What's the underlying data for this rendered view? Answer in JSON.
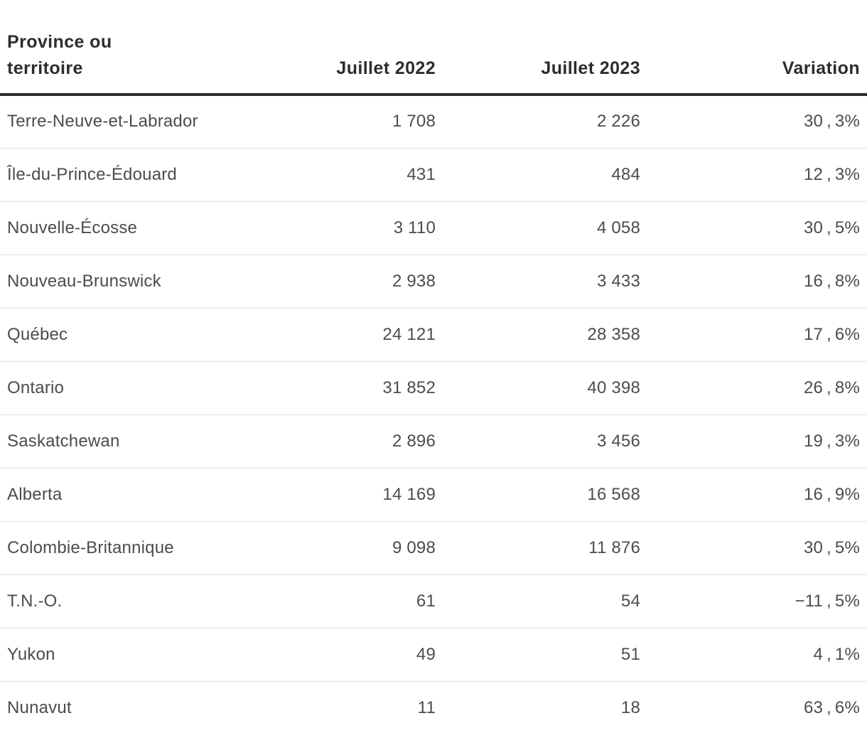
{
  "colors": {
    "background": "#ffffff",
    "header_text": "#2d2d2d",
    "body_text": "#4c4c4c",
    "header_rule": "#2b2b2b",
    "row_separator": "#e2e2e2"
  },
  "table": {
    "columns": [
      {
        "id": "province",
        "label": "Province ou territoire"
      },
      {
        "id": "juillet_2022",
        "label": "Juillet 2022"
      },
      {
        "id": "juillet_2023",
        "label": "Juillet 2023"
      },
      {
        "id": "variation",
        "label": "Variation"
      }
    ],
    "rows": [
      {
        "province": "Terre-Neuve-et-Labrador",
        "juillet_2022": "1 708",
        "juillet_2023": "2 226",
        "variation": "30 , 3%"
      },
      {
        "province": "Île-du-Prince-Édouard",
        "juillet_2022": "431",
        "juillet_2023": "484",
        "variation": "12 , 3%"
      },
      {
        "province": "Nouvelle-Écosse",
        "juillet_2022": "3 110",
        "juillet_2023": "4 058",
        "variation": "30 , 5%"
      },
      {
        "province": "Nouveau-Brunswick",
        "juillet_2022": "2 938",
        "juillet_2023": "3 433",
        "variation": "16 , 8%"
      },
      {
        "province": "Québec",
        "juillet_2022": "24 121",
        "juillet_2023": "28 358",
        "variation": "17 , 6%"
      },
      {
        "province": "Ontario",
        "juillet_2022": "31 852",
        "juillet_2023": "40 398",
        "variation": "26 , 8%"
      },
      {
        "province": "Saskatchewan",
        "juillet_2022": "2 896",
        "juillet_2023": "3 456",
        "variation": "19 , 3%"
      },
      {
        "province": "Alberta",
        "juillet_2022": "14 169",
        "juillet_2023": "16 568",
        "variation": "16 , 9%"
      },
      {
        "province": "Colombie-Britannique",
        "juillet_2022": "9 098",
        "juillet_2023": "11 876",
        "variation": "30 , 5%"
      },
      {
        "province": "T.N.-O.",
        "juillet_2022": "61",
        "juillet_2023": "54",
        "variation": "−11 , 5%"
      },
      {
        "province": "Yukon",
        "juillet_2022": "49",
        "juillet_2023": "51",
        "variation": "4 , 1%"
      },
      {
        "province": "Nunavut",
        "juillet_2022": "11",
        "juillet_2023": "18",
        "variation": "63 , 6%"
      }
    ]
  },
  "chart_data": {
    "type": "table",
    "title": "",
    "columns": [
      "Province ou territoire",
      "Juillet 2022",
      "Juillet 2023",
      "Variation"
    ],
    "rows": [
      {
        "province": "Terre-Neuve-et-Labrador",
        "juillet_2022": 1708,
        "juillet_2023": 2226,
        "variation_pct": 30.3
      },
      {
        "province": "Île-du-Prince-Édouard",
        "juillet_2022": 431,
        "juillet_2023": 484,
        "variation_pct": 12.3
      },
      {
        "province": "Nouvelle-Écosse",
        "juillet_2022": 3110,
        "juillet_2023": 4058,
        "variation_pct": 30.5
      },
      {
        "province": "Nouveau-Brunswick",
        "juillet_2022": 2938,
        "juillet_2023": 3433,
        "variation_pct": 16.8
      },
      {
        "province": "Québec",
        "juillet_2022": 24121,
        "juillet_2023": 28358,
        "variation_pct": 17.6
      },
      {
        "province": "Ontario",
        "juillet_2022": 31852,
        "juillet_2023": 40398,
        "variation_pct": 26.8
      },
      {
        "province": "Saskatchewan",
        "juillet_2022": 2896,
        "juillet_2023": 3456,
        "variation_pct": 19.3
      },
      {
        "province": "Alberta",
        "juillet_2022": 14169,
        "juillet_2023": 16568,
        "variation_pct": 16.9
      },
      {
        "province": "Colombie-Britannique",
        "juillet_2022": 9098,
        "juillet_2023": 11876,
        "variation_pct": 30.5
      },
      {
        "province": "T.N.-O.",
        "juillet_2022": 61,
        "juillet_2023": 54,
        "variation_pct": -11.5
      },
      {
        "province": "Yukon",
        "juillet_2022": 49,
        "juillet_2023": 51,
        "variation_pct": 4.1
      },
      {
        "province": "Nunavut",
        "juillet_2022": 11,
        "juillet_2023": 18,
        "variation_pct": 63.6
      }
    ]
  }
}
